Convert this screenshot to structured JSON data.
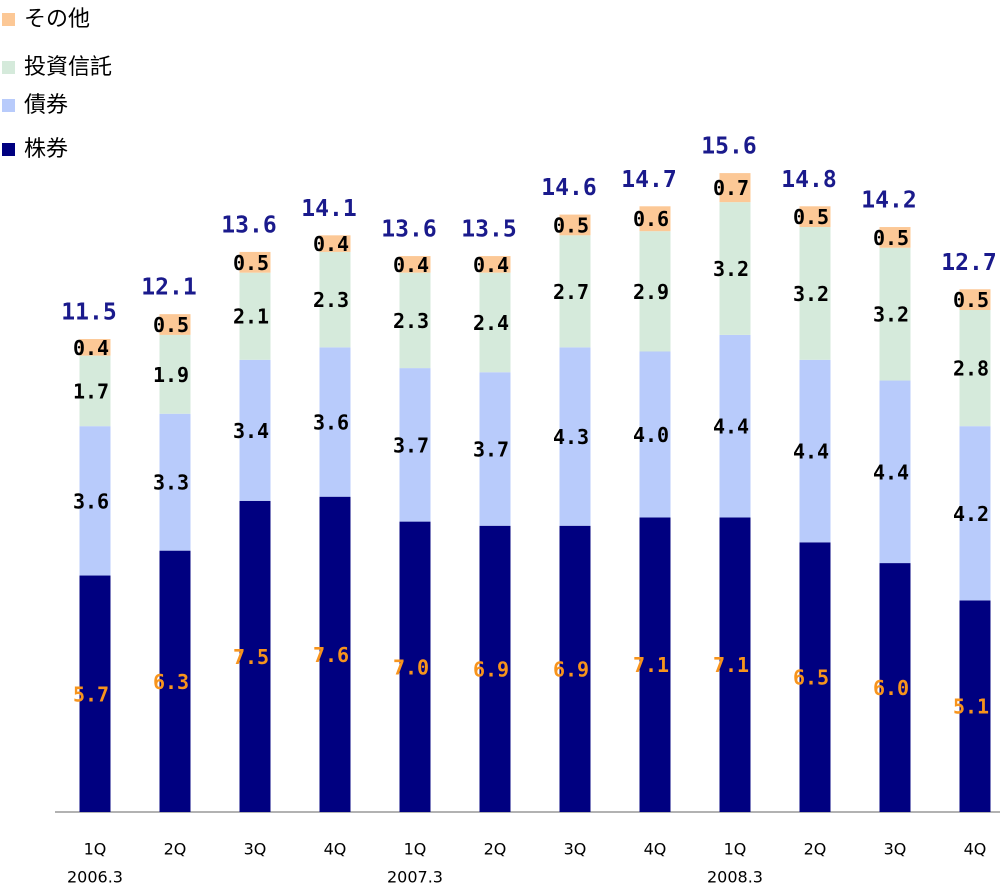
{
  "chart_data": {
    "type": "stacked_bar",
    "categories": [
      "1Q",
      "2Q",
      "3Q",
      "4Q",
      "1Q",
      "2Q",
      "3Q",
      "4Q",
      "1Q",
      "2Q",
      "3Q",
      "4Q"
    ],
    "period_labels": [
      "2006.3",
      null,
      null,
      null,
      "2007.3",
      null,
      null,
      null,
      "2008.3",
      null,
      null,
      null
    ],
    "series": [
      {
        "name": "株券",
        "color": "#000080",
        "label_color": "#f7941d",
        "values": [
          5.7,
          6.3,
          7.5,
          7.6,
          7.0,
          6.9,
          6.9,
          7.1,
          7.1,
          6.5,
          6.0,
          5.1
        ],
        "value_labels": [
          "5.7",
          "6.3",
          "7.5",
          "7.6",
          "7.0",
          "6.9",
          "6.9",
          "7.1",
          "7.1",
          "6.5",
          "6.0",
          "5.1"
        ]
      },
      {
        "name": "債券",
        "color": "#b8cbfb",
        "label_color": "#000000",
        "values": [
          3.6,
          3.3,
          3.4,
          3.6,
          3.7,
          3.7,
          4.3,
          4.0,
          4.4,
          4.4,
          4.4,
          4.2
        ],
        "value_labels": [
          "3.6",
          "3.3",
          "3.4",
          "3.6",
          "3.7",
          "3.7",
          "4.3",
          "4.0",
          "4.4",
          "4.4",
          "4.4",
          "4.2"
        ]
      },
      {
        "name": "投資信託",
        "color": "#d5eadb",
        "label_color": "#000000",
        "values": [
          1.7,
          1.9,
          2.1,
          2.3,
          2.3,
          2.4,
          2.7,
          2.9,
          3.2,
          3.2,
          3.2,
          2.8
        ],
        "value_labels": [
          "1.7",
          "1.9",
          "2.1",
          "2.3",
          "2.3",
          "2.4",
          "2.7",
          "2.9",
          "3.2",
          "3.2",
          "3.2",
          "2.8"
        ]
      },
      {
        "name": "その他",
        "color": "#fcc896",
        "label_color": "#000000",
        "values": [
          0.4,
          0.5,
          0.5,
          0.4,
          0.4,
          0.4,
          0.5,
          0.6,
          0.7,
          0.5,
          0.5,
          0.5
        ],
        "value_labels": [
          "0.4",
          "0.5",
          "0.5",
          "0.4",
          "0.4",
          "0.4",
          "0.5",
          "0.6",
          "0.7",
          "0.5",
          "0.5",
          "0.5"
        ]
      }
    ],
    "totals": [
      11.5,
      12.1,
      13.6,
      14.1,
      13.6,
      13.5,
      14.6,
      14.7,
      15.6,
      14.8,
      14.2,
      12.7
    ],
    "total_color": "#1a1a8c",
    "ylim": [
      0,
      19.5
    ]
  }
}
